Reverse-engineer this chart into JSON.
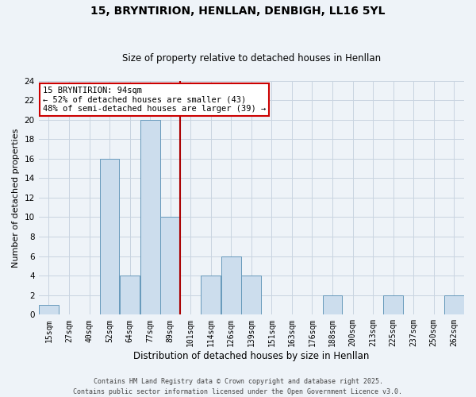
{
  "title": "15, BRYNTIRION, HENLLAN, DENBIGH, LL16 5YL",
  "subtitle": "Size of property relative to detached houses in Henllan",
  "xlabel": "Distribution of detached houses by size in Henllan",
  "ylabel": "Number of detached properties",
  "bin_labels": [
    "15sqm",
    "27sqm",
    "40sqm",
    "52sqm",
    "64sqm",
    "77sqm",
    "89sqm",
    "101sqm",
    "114sqm",
    "126sqm",
    "139sqm",
    "151sqm",
    "163sqm",
    "176sqm",
    "188sqm",
    "200sqm",
    "213sqm",
    "225sqm",
    "237sqm",
    "250sqm",
    "262sqm"
  ],
  "bar_heights": [
    1,
    0,
    0,
    16,
    4,
    20,
    10,
    0,
    4,
    6,
    4,
    0,
    0,
    0,
    2,
    0,
    0,
    2,
    0,
    0,
    2
  ],
  "bar_color": "#ccdded",
  "bar_edge_color": "#6699bb",
  "grid_color": "#c8d4e0",
  "background_color": "#eef3f8",
  "vline_color": "#aa0000",
  "annotation_text": "15 BRYNTIRION: 94sqm\n← 52% of detached houses are smaller (43)\n48% of semi-detached houses are larger (39) →",
  "annotation_box_color": "#ffffff",
  "annotation_border_color": "#cc0000",
  "ylim": [
    0,
    24
  ],
  "yticks": [
    0,
    2,
    4,
    6,
    8,
    10,
    12,
    14,
    16,
    18,
    20,
    22,
    24
  ],
  "footer_line1": "Contains HM Land Registry data © Crown copyright and database right 2025.",
  "footer_line2": "Contains public sector information licensed under the Open Government Licence v3.0."
}
